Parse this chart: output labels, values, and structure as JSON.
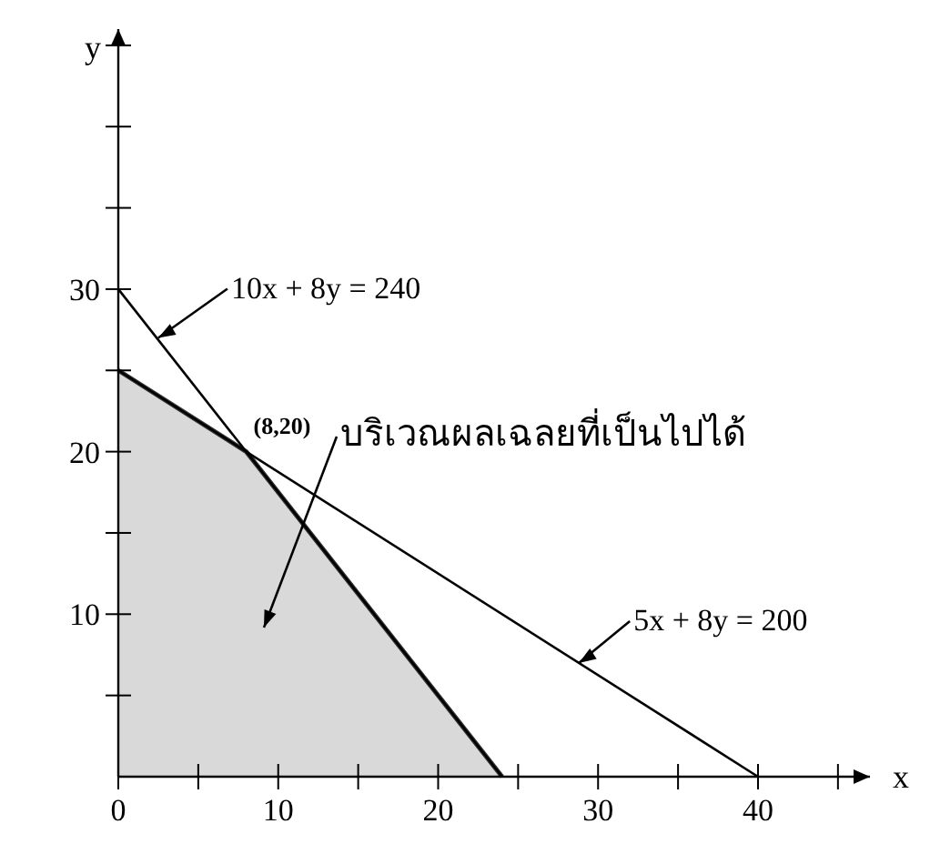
{
  "chart_data": {
    "type": "line",
    "xlabel": "x",
    "ylabel": "y",
    "xlim": [
      0,
      47
    ],
    "ylim": [
      0,
      46
    ],
    "xticks": [
      0,
      {
        "value": 5,
        "label": null
      },
      10,
      {
        "value": 15,
        "label": null
      },
      20,
      {
        "value": 25,
        "label": null
      },
      30,
      {
        "value": 35,
        "label": null
      },
      40,
      {
        "value": 45,
        "label": null
      }
    ],
    "yticks": [
      {
        "value": 5,
        "label": null
      },
      10,
      {
        "value": 15,
        "label": null
      },
      20,
      {
        "value": 25,
        "label": null
      },
      30,
      {
        "value": 35,
        "label": null
      },
      {
        "value": 40,
        "label": null
      },
      {
        "value": 45,
        "label": null
      }
    ],
    "series": [
      {
        "type": "area",
        "color": "#d9d9d9",
        "x": [
          0,
          8,
          24
        ],
        "values": [
          25,
          20,
          0
        ]
      },
      {
        "color": "#000000",
        "x": [
          0,
          24
        ],
        "values": [
          30,
          0
        ]
      },
      {
        "color": "#000000",
        "x": [
          0,
          40
        ],
        "values": [
          25,
          0
        ]
      }
    ],
    "annotations": [
      {
        "text": "10x + 8y = 240",
        "x": 2.5,
        "y": 27
      },
      "บริเวณผลเฉลยที่เป็นไปได้",
      {
        "text": "(8,20)",
        "x": 8,
        "y": 20
      },
      {
        "text": "5x + 8y = 200",
        "x": 28.8,
        "y": 7
      }
    ],
    "grid": false,
    "marker": "none",
    "line_style": "solid"
  }
}
